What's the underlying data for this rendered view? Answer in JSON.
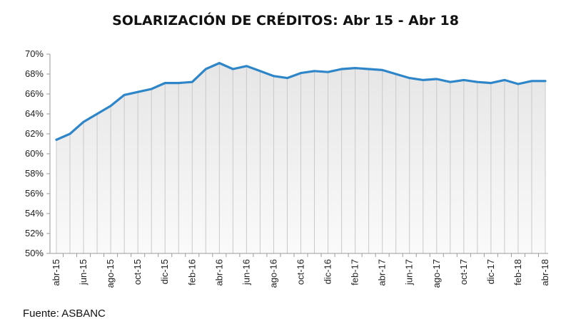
{
  "chart_data": {
    "type": "area",
    "title": "SOLARIZACIÓN DE CRÉDITOS: Abr 15 - Abr 18",
    "xlabel": "",
    "ylabel": "",
    "x": [
      "abr-15",
      "may-15",
      "jun-15",
      "jul-15",
      "ago-15",
      "sep-15",
      "oct-15",
      "nov-15",
      "dic-15",
      "ene-16",
      "feb-16",
      "mar-16",
      "abr-16",
      "may-16",
      "jun-16",
      "jul-16",
      "ago-16",
      "sep-16",
      "oct-16",
      "nov-16",
      "dic-16",
      "ene-17",
      "feb-17",
      "mar-17",
      "abr-17",
      "may-17",
      "jun-17",
      "jul-17",
      "ago-17",
      "sep-17",
      "oct-17",
      "nov-17",
      "dic-17",
      "ene-18",
      "feb-18",
      "mar-18",
      "abr-18"
    ],
    "x_tick_labels": [
      "abr-15",
      "jun-15",
      "ago-15",
      "oct-15",
      "dic-15",
      "feb-16",
      "abr-16",
      "jun-16",
      "ago-16",
      "oct-16",
      "dic-16",
      "feb-17",
      "abr-17",
      "jun-17",
      "ago-17",
      "oct-17",
      "dic-17",
      "feb-18",
      "abr-18"
    ],
    "values": [
      61.4,
      62.0,
      63.2,
      64.0,
      64.8,
      65.9,
      66.2,
      66.5,
      67.1,
      67.1,
      67.2,
      68.5,
      69.1,
      68.5,
      68.8,
      68.3,
      67.8,
      67.6,
      68.1,
      68.3,
      68.2,
      68.5,
      68.6,
      68.5,
      68.4,
      68.0,
      67.6,
      67.4,
      67.5,
      67.2,
      67.4,
      67.2,
      67.1,
      67.4,
      67.0,
      67.3,
      67.3
    ],
    "y_ticks": [
      "50%",
      "52%",
      "54%",
      "56%",
      "58%",
      "60%",
      "62%",
      "64%",
      "66%",
      "68%",
      "70%"
    ],
    "ylim": [
      50,
      70
    ],
    "grid": "vertical",
    "line_color": "#2E86C8",
    "fill_color": "#EDEDED"
  },
  "source_note": "Fuente: ASBANC"
}
